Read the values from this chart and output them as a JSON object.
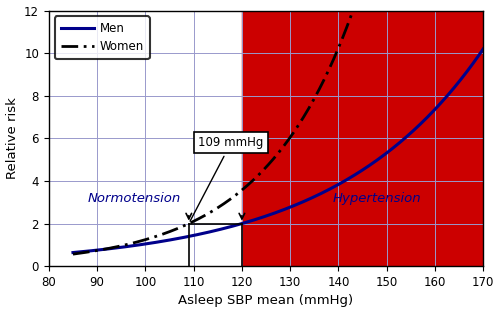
{
  "x_min": 80,
  "x_max": 170,
  "y_min": 0,
  "y_max": 12,
  "x_ticks": [
    80,
    90,
    100,
    110,
    120,
    130,
    140,
    150,
    160,
    170
  ],
  "y_ticks": [
    0,
    2,
    4,
    6,
    8,
    10,
    12
  ],
  "hypertension_threshold": 120,
  "women_threshold": 109,
  "xlabel": "Asleep SBP mean (mmHg)",
  "ylabel": "Relative risk",
  "men_label": "Men",
  "women_label": "Women",
  "normotension_label": "Normotension",
  "hypertension_label": "Hypertension",
  "annotation_text": "109 mmHg",
  "men_color": "#00008B",
  "women_color": "#000000",
  "shaded_color": "#CC0000",
  "grid_color": "#9999CC",
  "background_color": "#FFFFFF",
  "legend_bg": "#1a1a2e",
  "figsize": [
    5.0,
    3.13
  ],
  "dpi": 100,
  "men_k": 0.03259,
  "men_ref_x": 120,
  "men_ref_y": 2.0,
  "wom_ref_x": 109,
  "wom_ref_y": 2.0,
  "wom_k": 0.0527,
  "men_start_x": 85,
  "men_end_x": 170,
  "wom_start_x": 85,
  "wom_end_x": 145
}
